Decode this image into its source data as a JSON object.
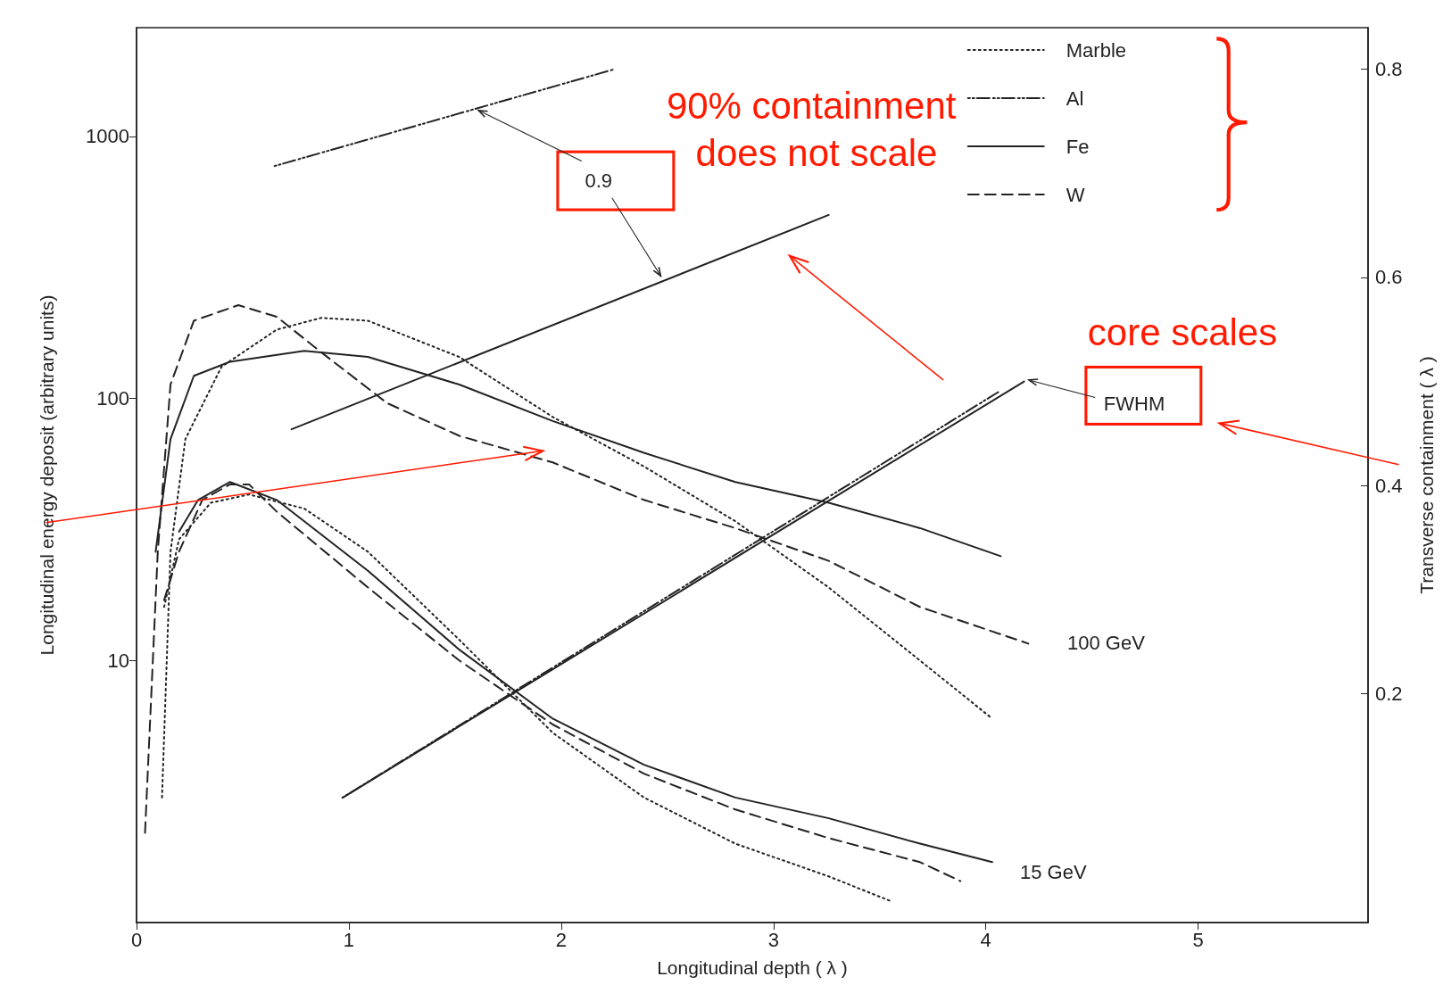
{
  "chart_data": {
    "type": "line",
    "xlabel": "Longitudinal depth ( λ )",
    "ylabel": "Longitudinal energy deposit (arbitrary units)",
    "y2label": "Transverse containment ( λ )",
    "xlim": [
      0,
      5.8
    ],
    "xticks": [
      0,
      1,
      2,
      3,
      4,
      5
    ],
    "log": "y",
    "ylim": [
      1,
      2600
    ],
    "yticks": [
      10,
      100,
      1000
    ],
    "y2lim": [
      -0.02,
      0.84
    ],
    "y2ticks": [
      0.2,
      0.4,
      0.6,
      0.8
    ],
    "grid": false,
    "legend": "top right",
    "series": [
      {
        "name": "Marble",
        "color": "#222222",
        "line_style": "dotted",
        "x": [
          0.12,
          0.16,
          0.23,
          0.4,
          0.66,
          0.87,
          1.09,
          1.52,
          1.96,
          2.39,
          2.82,
          3.26,
          3.69,
          4.03
        ],
        "values": [
          3.0,
          26,
          70,
          132,
          183,
          203,
          198,
          144,
          85,
          55,
          34,
          19,
          10,
          6.0
        ]
      },
      {
        "name": "Al",
        "color": "#222222",
        "line_style": "dashdot",
        "axis": "y2",
        "x": [
          0.65,
          2.25
        ],
        "values": [
          0.707,
          0.8
        ]
      },
      {
        "name": "Fe",
        "color": "#222222",
        "line_style": "solid",
        "x": [
          0.09,
          0.16,
          0.27,
          0.44,
          0.79,
          1.09,
          1.52,
          1.96,
          2.39,
          2.82,
          3.26,
          3.69,
          4.07
        ],
        "values": [
          26,
          70,
          122,
          138,
          152,
          144,
          113,
          82,
          62,
          48,
          40,
          32,
          25
        ]
      },
      {
        "name": "W",
        "color": "#222222",
        "line_style": "dashed",
        "x": [
          0.04,
          0.1,
          0.16,
          0.27,
          0.48,
          0.66,
          0.87,
          1.18,
          1.52,
          1.96,
          2.39,
          2.82,
          3.26,
          3.69,
          4.2
        ],
        "values": [
          2.2,
          26,
          113,
          198,
          227,
          205,
          150,
          96,
          72,
          57,
          41,
          32,
          24,
          16,
          11.6
        ]
      },
      {
        "color": "#222222",
        "line_style": "dotted",
        "x": [
          0.13,
          0.2,
          0.35,
          0.53,
          0.79,
          1.09,
          1.52,
          1.96,
          2.39,
          2.82,
          3.26,
          3.56
        ],
        "values": [
          16,
          29,
          40,
          43,
          38,
          26,
          12,
          5.3,
          3.0,
          2.0,
          1.5,
          1.2
        ]
      },
      {
        "color": "#222222",
        "line_style": "solid",
        "x": [
          0.2,
          0.29,
          0.44,
          0.66,
          1.09,
          1.52,
          1.96,
          2.39,
          2.82,
          3.26,
          3.69,
          4.03
        ],
        "values": [
          31,
          41,
          48,
          41,
          22,
          11,
          6.0,
          4.0,
          3.0,
          2.5,
          2.0,
          1.7
        ]
      },
      {
        "color": "#222222",
        "line_style": "dashed",
        "x": [
          0.13,
          0.2,
          0.31,
          0.44,
          0.53,
          0.66,
          1.09,
          1.52,
          1.96,
          2.39,
          2.82,
          3.26,
          3.69,
          3.88
        ],
        "values": [
          17,
          26,
          41,
          47,
          47,
          37,
          19,
          10,
          5.7,
          3.7,
          2.7,
          2.1,
          1.7,
          1.44
        ]
      },
      {
        "color": "#222222",
        "line_style": "solid",
        "axis": "y2",
        "x": [
          0.73,
          3.26
        ],
        "values": [
          0.454,
          0.66
        ]
      },
      {
        "color": "#222222",
        "line_style": "dashdot",
        "axis": "y2",
        "x": [
          0.97,
          4.06
        ],
        "values": [
          0.1,
          0.49
        ]
      },
      {
        "color": "#222222",
        "line_style": "solid",
        "axis": "y2",
        "x": [
          0.97,
          4.18
        ],
        "values": [
          0.1,
          0.5
        ]
      }
    ],
    "annotations": [
      {
        "text": "0.9",
        "x": 1.6,
        "y": 1260
      },
      "FWHM",
      "100 GeV",
      "15 GeV",
      "90% containment does not scale",
      "core scales"
    ]
  }
}
